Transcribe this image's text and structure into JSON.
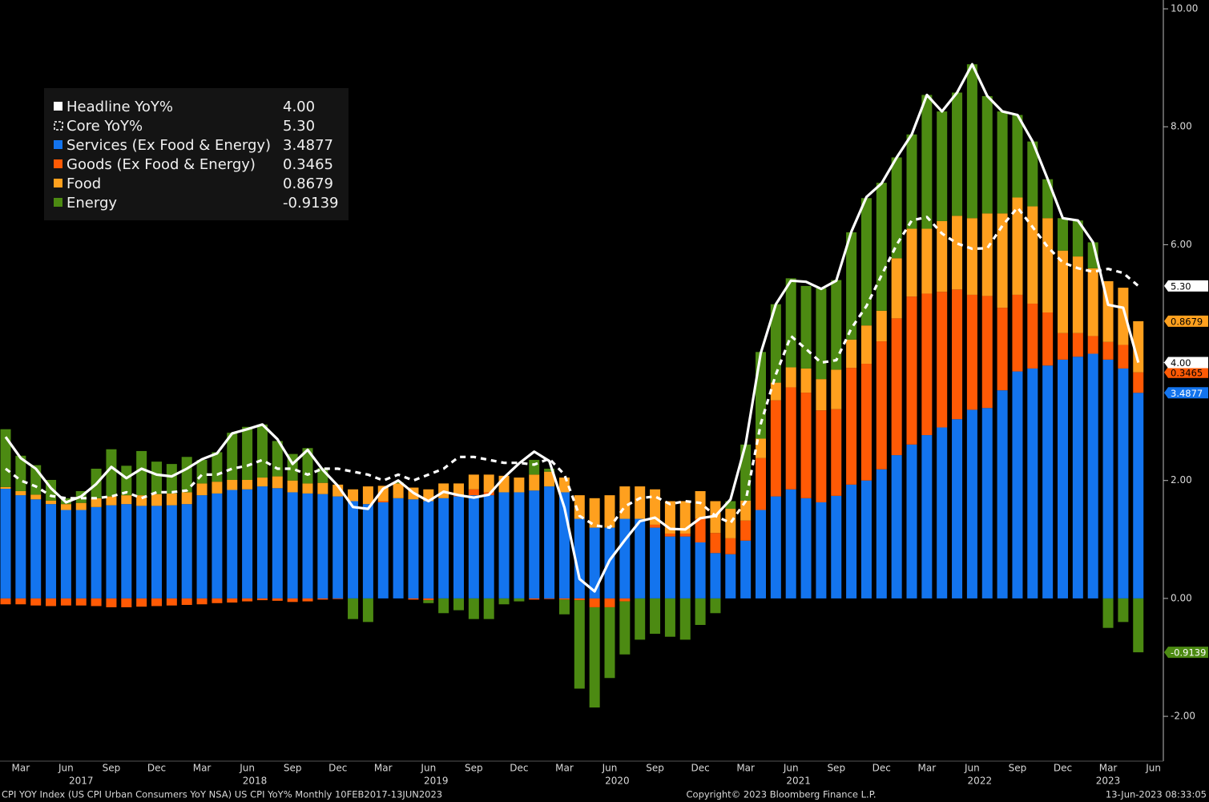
{
  "chart_data": {
    "type": "bar",
    "categories": [
      null,
      "Mar",
      null,
      null,
      "Jun",
      null,
      null,
      "Sep",
      null,
      null,
      "Dec",
      null,
      null,
      "Mar",
      null,
      null,
      "Jun",
      null,
      null,
      "Sep",
      null,
      null,
      "Dec",
      null,
      null,
      "Mar",
      null,
      null,
      "Jun",
      null,
      null,
      "Sep",
      null,
      null,
      "Dec",
      null,
      null,
      "Mar",
      null,
      null,
      "Jun",
      null,
      null,
      "Sep",
      null,
      null,
      "Dec",
      null,
      null,
      "Mar",
      null,
      null,
      "Jun",
      null,
      null,
      "Sep",
      null,
      null,
      "Dec",
      null,
      null,
      "Mar",
      null,
      null,
      "Jun",
      null,
      null,
      "Sep",
      null,
      null,
      "Dec",
      null,
      null,
      "Mar",
      null,
      null
    ],
    "x_end_label": "Jun",
    "years": [
      "2017",
      "2018",
      "2019",
      "2020",
      "2021",
      "2022",
      "2023"
    ],
    "ylim": [
      -2.76,
      10.15
    ],
    "yticks": [
      {
        "value": -2,
        "label": "-2.00"
      },
      {
        "value": 0,
        "label": "0.00"
      },
      {
        "value": 2,
        "label": "2.00"
      },
      {
        "value": 4,
        "label": "4.00"
      },
      {
        "value": 6,
        "label": "6.00"
      },
      {
        "value": 8,
        "label": "8.00"
      },
      {
        "value": 10,
        "label": "10.00"
      }
    ],
    "series": [
      {
        "name": "Headline YoY%",
        "type": "line",
        "dash": false,
        "color": "#ffffff",
        "value_label": "4.00",
        "values": [
          2.74,
          2.38,
          2.2,
          1.87,
          1.63,
          1.73,
          1.94,
          2.23,
          2.04,
          2.2,
          2.1,
          2.07,
          2.2,
          2.36,
          2.46,
          2.8,
          2.87,
          2.95,
          2.7,
          2.28,
          2.52,
          2.18,
          1.91,
          1.55,
          1.52,
          1.86,
          2.0,
          1.79,
          1.65,
          1.81,
          1.75,
          1.71,
          1.76,
          2.05,
          2.29,
          2.49,
          2.33,
          1.54,
          0.33,
          0.12,
          0.65,
          0.99,
          1.31,
          1.37,
          1.18,
          1.17,
          1.36,
          1.4,
          1.68,
          2.62,
          4.16,
          4.99,
          5.39,
          5.37,
          5.25,
          5.39,
          6.22,
          6.81,
          7.04,
          7.48,
          7.87,
          8.54,
          8.26,
          8.58,
          9.06,
          8.52,
          8.26,
          8.2,
          7.75,
          7.11,
          6.45,
          6.41,
          6.04,
          4.98,
          4.93,
          4
        ]
      },
      {
        "name": "Core YoY%",
        "type": "line",
        "dash": true,
        "color": "#ffffff",
        "value_label": "5.30",
        "values": [
          2.2,
          2.0,
          1.9,
          1.74,
          1.7,
          1.7,
          1.7,
          1.73,
          1.8,
          1.7,
          1.8,
          1.8,
          1.83,
          2.1,
          2.1,
          2.2,
          2.25,
          2.35,
          2.2,
          2.2,
          2.1,
          2.2,
          2.2,
          2.15,
          2.1,
          2.0,
          2.1,
          2.0,
          2.1,
          2.2,
          2.4,
          2.4,
          2.35,
          2.3,
          2.3,
          2.27,
          2.37,
          2.1,
          1.4,
          1.24,
          1.2,
          1.56,
          1.7,
          1.73,
          1.6,
          1.65,
          1.62,
          1.4,
          1.28,
          1.65,
          2.96,
          3.8,
          4.45,
          4.23,
          4.0,
          4.04,
          4.58,
          4.96,
          5.48,
          6.0,
          6.41,
          6.47,
          6.19,
          6.02,
          5.93,
          5.94,
          6.32,
          6.63,
          6.3,
          5.96,
          5.7,
          5.6,
          5.54,
          5.59,
          5.52,
          5.3
        ]
      },
      {
        "name": "Services (Ex Food & Energy)",
        "type": "bar",
        "color": "#1374ee",
        "value_label": "3.4877",
        "values": [
          1.86,
          1.75,
          1.68,
          1.6,
          1.5,
          1.5,
          1.55,
          1.58,
          1.6,
          1.57,
          1.57,
          1.58,
          1.6,
          1.75,
          1.78,
          1.84,
          1.85,
          1.9,
          1.87,
          1.8,
          1.78,
          1.77,
          1.73,
          1.65,
          1.6,
          1.63,
          1.7,
          1.68,
          1.65,
          1.7,
          1.73,
          1.75,
          1.75,
          1.8,
          1.8,
          1.83,
          1.9,
          1.8,
          1.35,
          1.2,
          1.2,
          1.35,
          1.35,
          1.2,
          1.05,
          1.05,
          0.95,
          0.77,
          0.75,
          0.98,
          1.5,
          1.73,
          1.85,
          1.7,
          1.63,
          1.74,
          1.93,
          2.0,
          2.19,
          2.43,
          2.61,
          2.77,
          2.9,
          3.04,
          3.2,
          3.23,
          3.53,
          3.85,
          3.9,
          3.95,
          4.05,
          4.1,
          4.15,
          4.05,
          3.9,
          3.4877
        ]
      },
      {
        "name": "Goods (Ex Food & Energy)",
        "type": "bar",
        "color": "#ff5a05",
        "value_label": "0.3465",
        "values": [
          -0.1,
          -0.1,
          -0.12,
          -0.13,
          -0.12,
          -0.12,
          -0.13,
          -0.15,
          -0.15,
          -0.14,
          -0.13,
          -0.12,
          -0.11,
          -0.1,
          -0.08,
          -0.07,
          -0.05,
          -0.03,
          -0.04,
          -0.06,
          -0.05,
          -0.02,
          -0.01,
          0.0,
          0.0,
          0.02,
          0.0,
          -0.02,
          -0.03,
          0.0,
          0.02,
          0.1,
          0.05,
          0.0,
          0.0,
          -0.02,
          -0.01,
          -0.02,
          -0.03,
          -0.15,
          -0.15,
          -0.05,
          0.0,
          0.05,
          0.05,
          0.05,
          0.4,
          0.34,
          0.27,
          0.34,
          0.88,
          1.63,
          1.73,
          1.79,
          1.56,
          1.47,
          1.98,
          1.98,
          2.17,
          2.32,
          2.51,
          2.4,
          2.3,
          2.2,
          1.95,
          1.9,
          1.4,
          1.3,
          1.1,
          0.9,
          0.45,
          0.4,
          0.3,
          0.3,
          0.4,
          0.3465
        ]
      },
      {
        "name": "Food",
        "type": "bar",
        "color": "#ffa01e",
        "value_label": "0.8679",
        "values": [
          0.03,
          0.07,
          0.08,
          0.06,
          0.1,
          0.12,
          0.15,
          0.15,
          0.15,
          0.18,
          0.2,
          0.2,
          0.2,
          0.2,
          0.2,
          0.17,
          0.16,
          0.15,
          0.2,
          0.2,
          0.17,
          0.19,
          0.2,
          0.2,
          0.3,
          0.26,
          0.25,
          0.2,
          0.2,
          0.25,
          0.2,
          0.25,
          0.3,
          0.28,
          0.25,
          0.27,
          0.25,
          0.25,
          0.4,
          0.5,
          0.55,
          0.55,
          0.55,
          0.6,
          0.55,
          0.55,
          0.47,
          0.54,
          0.5,
          0.34,
          0.33,
          0.3,
          0.34,
          0.41,
          0.53,
          0.67,
          0.48,
          0.65,
          0.52,
          1.02,
          1.15,
          1.1,
          1.2,
          1.25,
          1.3,
          1.4,
          1.6,
          1.65,
          1.65,
          1.6,
          1.4,
          1.3,
          1.15,
          1.03,
          0.97,
          0.8679
        ]
      },
      {
        "name": "Energy",
        "type": "bar",
        "color": "#4c8a12",
        "value_label": "-0.9139",
        "values": [
          0.98,
          0.6,
          0.5,
          0.35,
          0.1,
          0.2,
          0.5,
          0.8,
          0.5,
          0.75,
          0.55,
          0.5,
          0.6,
          0.4,
          0.5,
          0.8,
          0.9,
          0.9,
          0.6,
          0.45,
          0.6,
          0.25,
          0.0,
          -0.35,
          -0.4,
          0.0,
          0.02,
          0.0,
          -0.05,
          -0.25,
          -0.2,
          -0.35,
          -0.35,
          -0.1,
          -0.05,
          0.25,
          0.05,
          -0.25,
          -1.5,
          -1.7,
          -1.2,
          -0.9,
          -0.7,
          -0.6,
          -0.65,
          -0.7,
          -0.45,
          -0.25,
          0.13,
          0.95,
          1.47,
          1.33,
          1.51,
          1.4,
          1.54,
          1.52,
          1.82,
          2.16,
          2.17,
          1.71,
          1.6,
          2.27,
          1.86,
          2.09,
          2.61,
          1.99,
          1.73,
          1.4,
          1.1,
          0.66,
          0.55,
          0.61,
          0.44,
          -0.5,
          -0.4,
          -0.9139
        ]
      }
    ],
    "footer_left": "CPI YOY Index (US CPI Urban Consumers YoY NSA) US CPI YoY%  Monthly 10FEB2017-13JUN2023",
    "footer_center": "Copyright© 2023 Bloomberg Finance L.P.",
    "footer_right": "13-Jun-2023 08:33:05"
  }
}
